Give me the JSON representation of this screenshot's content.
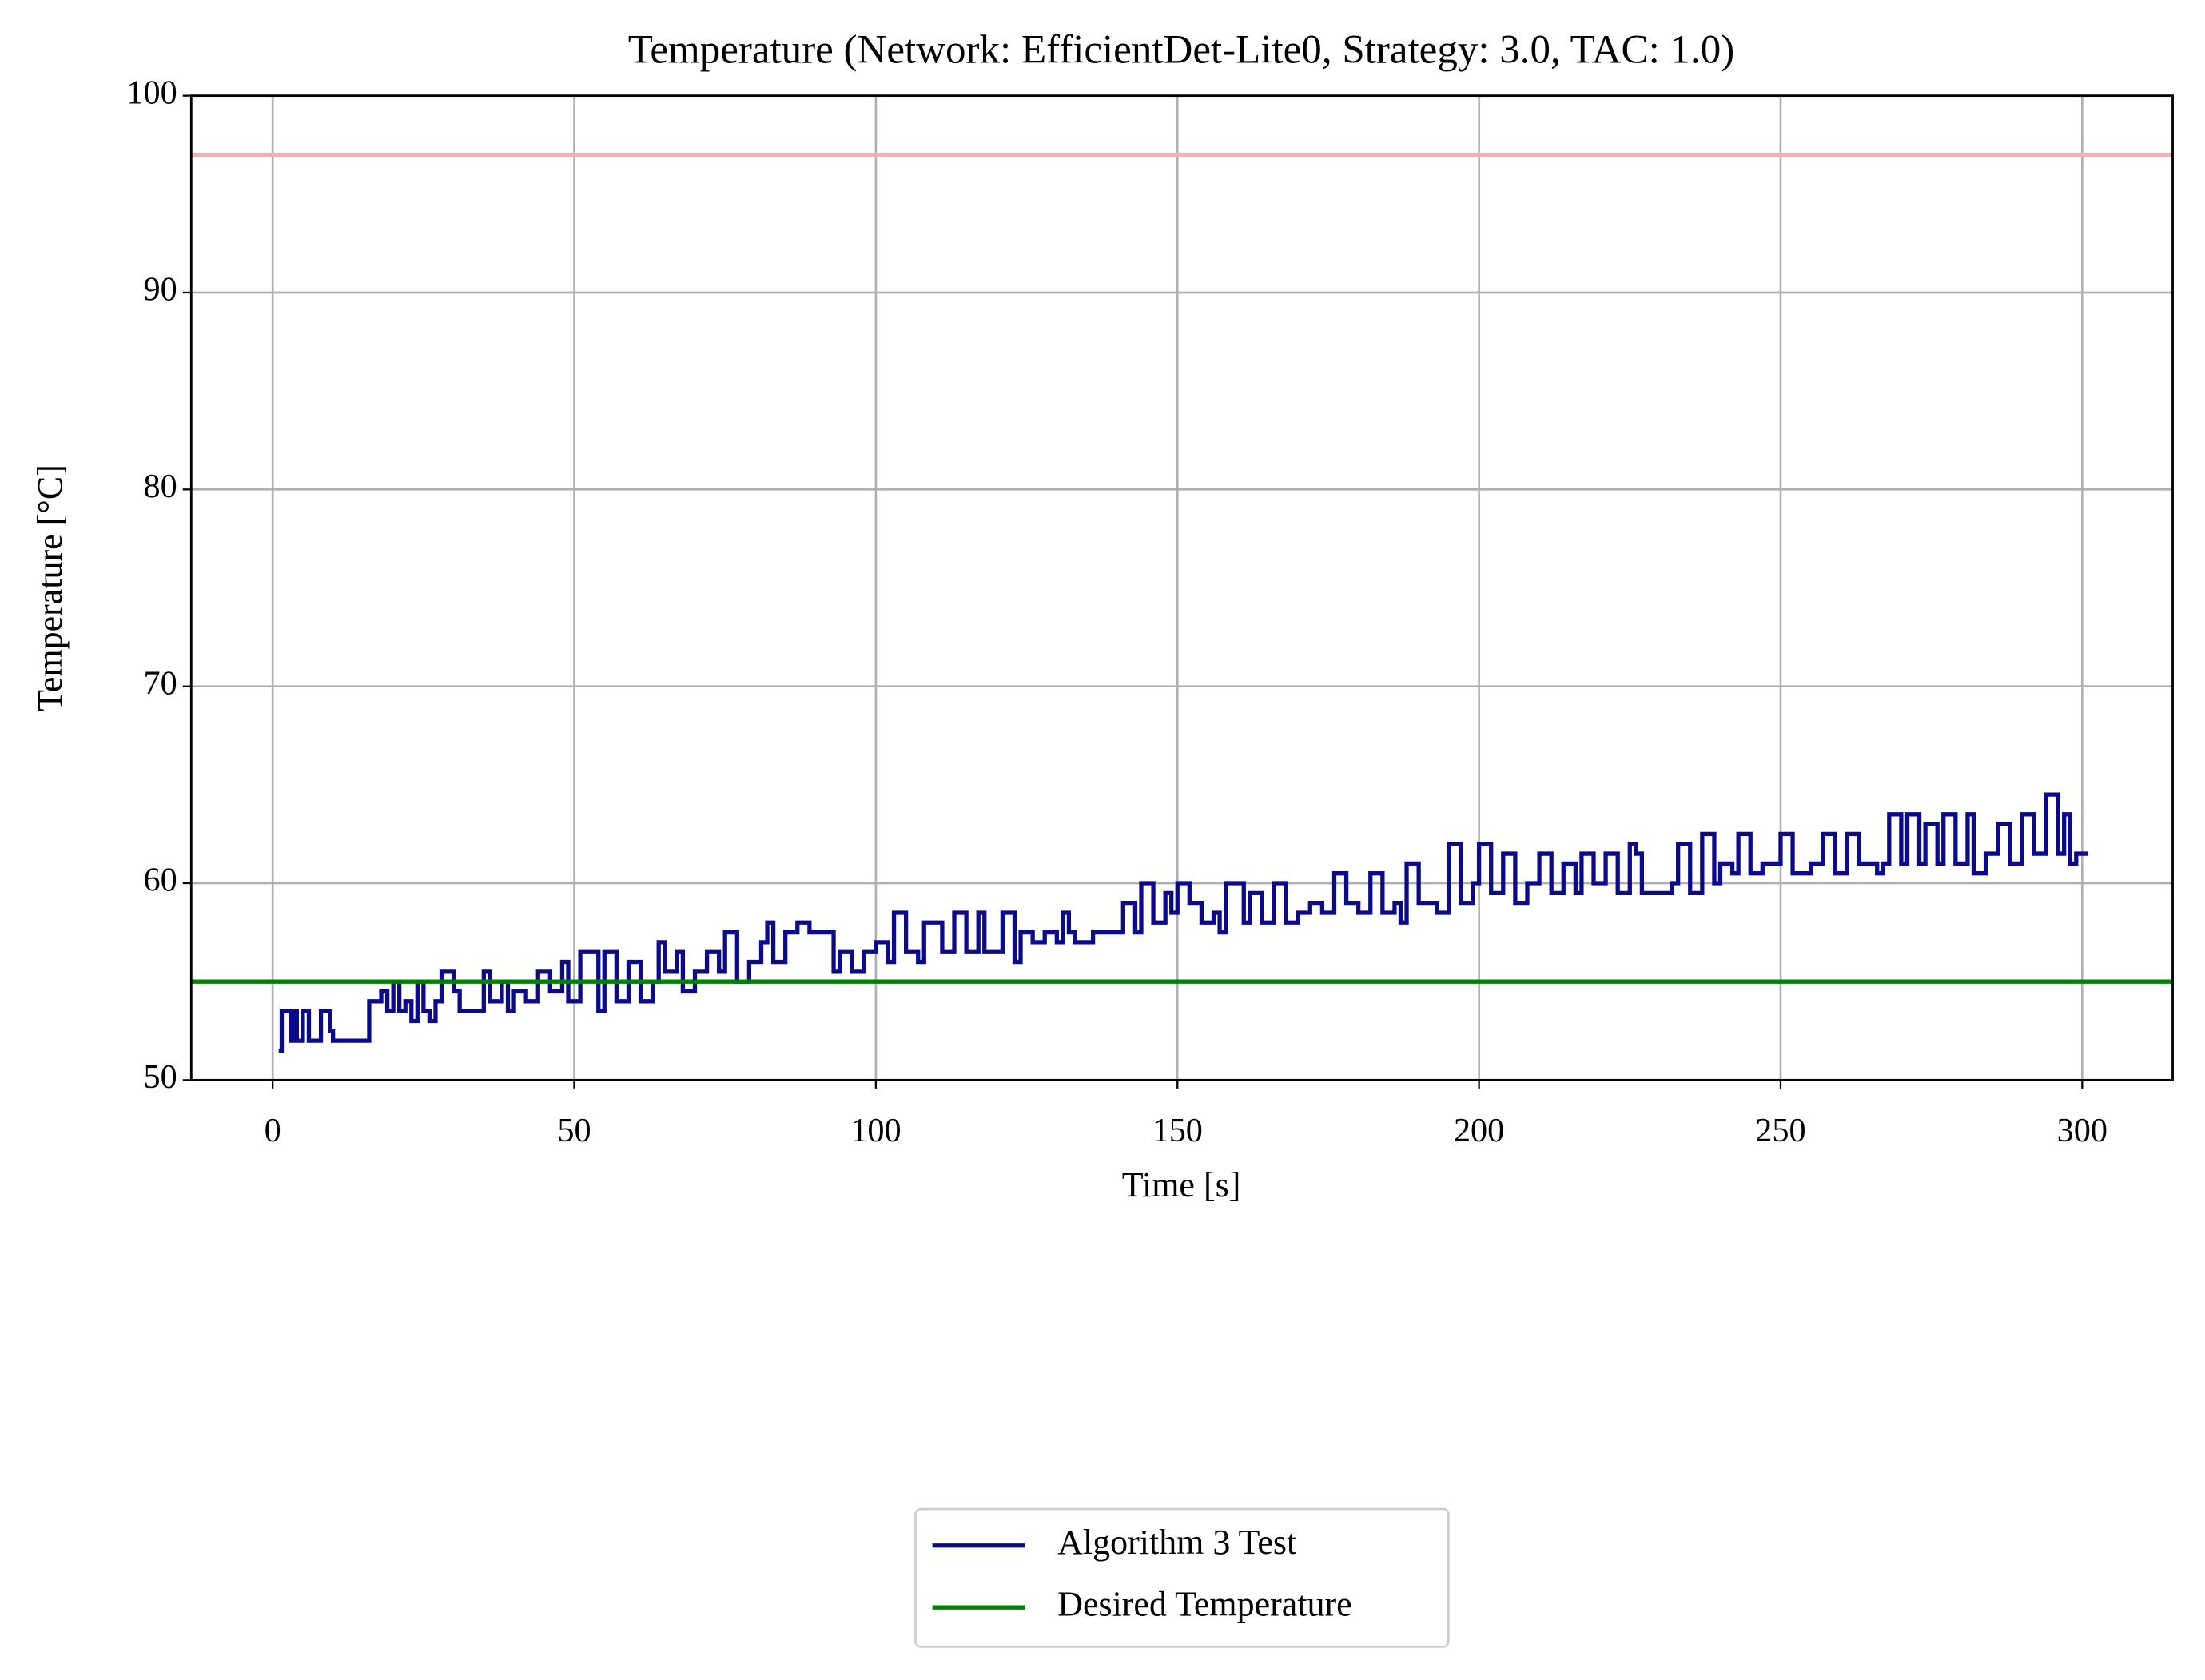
{
  "chart_data": {
    "type": "line",
    "drawstyle": "steps-post",
    "title": "Temperature (Network: EfficientDet-Lite0, Strategy: 3.0, TAC: 1.0)",
    "xlabel": "Time [s]",
    "ylabel": "Temperature [°C]",
    "xlim": [
      -13.5,
      315
    ],
    "ylim": [
      50,
      100
    ],
    "xticks": [
      0,
      50,
      100,
      150,
      200,
      250,
      300
    ],
    "yticks": [
      50,
      60,
      70,
      80,
      90,
      100
    ],
    "grid": true,
    "legend": "below",
    "x": [
      1,
      1.5,
      3,
      3.5,
      4,
      5,
      6,
      8,
      9.5,
      10,
      16,
      18,
      19,
      20,
      21,
      22,
      23,
      24,
      25,
      26,
      27,
      28,
      30,
      31,
      35,
      36,
      38,
      39,
      40,
      42,
      44,
      46,
      48,
      49,
      51,
      54,
      55,
      57,
      59,
      61,
      63,
      64,
      65,
      67,
      68,
      70,
      72,
      74,
      75,
      77,
      79,
      81,
      82,
      83,
      85,
      87,
      89,
      93,
      94,
      96,
      98,
      100,
      102,
      103,
      105,
      107,
      108,
      111,
      113,
      115,
      117,
      118,
      121,
      123,
      124,
      126,
      128,
      130,
      131,
      132,
      133,
      136,
      141,
      143,
      144,
      146,
      148,
      149,
      150,
      152,
      154,
      156,
      157,
      158,
      161,
      162,
      164,
      166,
      168,
      170,
      172,
      174,
      176,
      178,
      180,
      182,
      184,
      186,
      187,
      188,
      190,
      193,
      195,
      197,
      199,
      200,
      202,
      204,
      206,
      208,
      210,
      212,
      214,
      216,
      217,
      219,
      221,
      223,
      225,
      226,
      227,
      232,
      233,
      235,
      237,
      239,
      240,
      242,
      243,
      245,
      247,
      250,
      252,
      255,
      257,
      259,
      261,
      263,
      266,
      267,
      268,
      270,
      271,
      273,
      274,
      276,
      277,
      279,
      281,
      282,
      284,
      286,
      288,
      290,
      292,
      294,
      296,
      297,
      298,
      299,
      301
    ],
    "series": [
      {
        "name": "Algorithm 3 Test",
        "color": "#0a0a8a",
        "values": [
          51.5,
          53.5,
          52,
          53.5,
          52,
          53.5,
          52,
          53.5,
          52.5,
          52,
          54,
          54.5,
          53.5,
          55,
          53.5,
          54,
          53,
          55,
          53.5,
          53,
          54,
          55.5,
          54.5,
          53.5,
          55.5,
          54,
          55,
          53.5,
          54.5,
          54,
          55.5,
          54.5,
          56,
          54,
          56.5,
          53.5,
          56.5,
          54,
          56,
          54,
          55,
          57,
          55.5,
          56.5,
          54.5,
          55.5,
          56.5,
          55.5,
          57.5,
          55,
          56,
          57,
          58,
          56,
          57.5,
          58,
          57.5,
          55.5,
          56.5,
          55.5,
          56.5,
          57,
          56,
          58.5,
          56.5,
          56,
          58,
          56.5,
          58.5,
          56.5,
          58.5,
          56.5,
          58.5,
          56,
          57.5,
          57,
          57.5,
          57,
          58.5,
          57.5,
          57,
          57.5,
          59,
          57.5,
          60,
          58,
          59.5,
          58.5,
          60,
          59,
          58,
          58.5,
          57.5,
          60,
          58,
          59.5,
          58,
          60,
          58,
          58.5,
          59,
          58.5,
          60.5,
          59,
          58.5,
          60.5,
          58.5,
          59,
          58,
          61,
          59,
          58.5,
          62,
          59,
          60,
          62,
          59.5,
          61.5,
          59,
          60,
          61.5,
          59.5,
          61,
          59.5,
          61.5,
          60,
          61.5,
          59.5,
          62,
          61.5,
          59.5,
          60,
          62,
          59.5,
          62.5,
          60,
          61,
          60.5,
          62.5,
          60.5,
          61,
          62.5,
          60.5,
          61,
          62.5,
          60.5,
          62.5,
          61,
          60.5,
          61,
          63.5,
          61,
          63.5,
          61,
          63,
          61,
          63.5,
          61,
          63.5,
          60.5,
          61.5,
          63,
          61,
          63.5,
          61.5,
          64.5,
          61.5,
          63.5,
          61,
          61.5,
          61.5
        ]
      },
      {
        "name": "Desired Temperature",
        "color": "#008000",
        "value": 55
      }
    ],
    "reference_lines": [
      {
        "value": 97,
        "color": "#f4b0b0"
      }
    ]
  }
}
